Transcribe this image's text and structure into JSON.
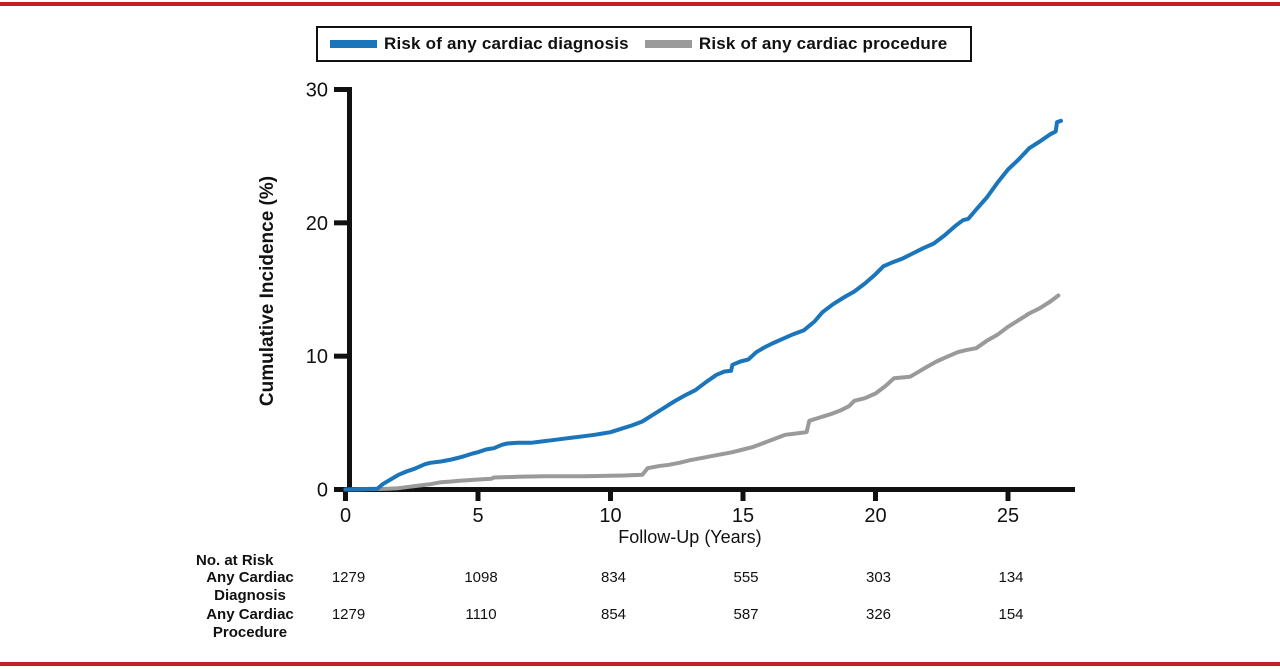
{
  "page": {
    "rule_color": "#C32026",
    "background": "#FFFFFF",
    "axis_color": "#111111"
  },
  "legend": {
    "items": [
      {
        "label": "Risk of any cardiac diagnosis",
        "color": "#1B75BB"
      },
      {
        "label": "Risk of any cardiac procedure",
        "color": "#9A9A9A"
      }
    ]
  },
  "chart_data": {
    "type": "line",
    "subtype": "cumulative-incidence-step-curves",
    "title": "",
    "xlabel": "Follow-Up (Years)",
    "ylabel": "Cumulative Incidence (%)",
    "xlim": [
      0,
      27.5
    ],
    "ylim": [
      0,
      30
    ],
    "x_ticks": [
      0,
      5,
      10,
      15,
      20,
      25
    ],
    "y_ticks": [
      0,
      10,
      20,
      30
    ],
    "grid": false,
    "legend_position": "top",
    "series": [
      {
        "name": "Risk of any cardiac procedure",
        "color": "#9A9A9A",
        "points": [
          [
            0,
            0
          ],
          [
            1.6,
            0.05
          ],
          [
            2,
            0.1
          ],
          [
            2.4,
            0.2
          ],
          [
            2.8,
            0.3
          ],
          [
            3.2,
            0.4
          ],
          [
            3.6,
            0.55
          ],
          [
            4,
            0.6
          ],
          [
            4.3,
            0.65
          ],
          [
            4.6,
            0.7
          ],
          [
            5,
            0.75
          ],
          [
            5.5,
            0.8
          ],
          [
            5.6,
            0.9
          ],
          [
            6.5,
            0.95
          ],
          [
            7.5,
            1.0
          ],
          [
            9,
            1.0
          ],
          [
            10.5,
            1.05
          ],
          [
            11.2,
            1.1
          ],
          [
            11.4,
            1.6
          ],
          [
            11.8,
            1.75
          ],
          [
            12.2,
            1.85
          ],
          [
            12.6,
            2.0
          ],
          [
            13,
            2.2
          ],
          [
            13.4,
            2.35
          ],
          [
            13.8,
            2.5
          ],
          [
            14.2,
            2.65
          ],
          [
            14.6,
            2.8
          ],
          [
            15,
            3.0
          ],
          [
            15.4,
            3.2
          ],
          [
            15.8,
            3.5
          ],
          [
            16.2,
            3.8
          ],
          [
            16.6,
            4.1
          ],
          [
            17,
            4.2
          ],
          [
            17.4,
            4.3
          ],
          [
            17.5,
            5.15
          ],
          [
            17.9,
            5.4
          ],
          [
            18.3,
            5.65
          ],
          [
            18.7,
            5.95
          ],
          [
            19,
            6.25
          ],
          [
            19.2,
            6.65
          ],
          [
            19.6,
            6.85
          ],
          [
            20,
            7.2
          ],
          [
            20.4,
            7.8
          ],
          [
            20.7,
            8.35
          ],
          [
            21.3,
            8.45
          ],
          [
            21.6,
            8.8
          ],
          [
            21.9,
            9.15
          ],
          [
            22.3,
            9.6
          ],
          [
            22.7,
            9.95
          ],
          [
            23.1,
            10.3
          ],
          [
            23.4,
            10.45
          ],
          [
            23.8,
            10.6
          ],
          [
            24.2,
            11.15
          ],
          [
            24.6,
            11.6
          ],
          [
            25,
            12.2
          ],
          [
            25.4,
            12.7
          ],
          [
            25.8,
            13.2
          ],
          [
            26.2,
            13.6
          ],
          [
            26.6,
            14.1
          ],
          [
            26.9,
            14.55
          ]
        ]
      },
      {
        "name": "Risk of any cardiac diagnosis",
        "color": "#1B75BB",
        "points": [
          [
            0,
            0
          ],
          [
            1.2,
            0.05
          ],
          [
            1.4,
            0.4
          ],
          [
            1.7,
            0.75
          ],
          [
            2,
            1.1
          ],
          [
            2.3,
            1.35
          ],
          [
            2.6,
            1.55
          ],
          [
            3,
            1.9
          ],
          [
            3.2,
            2.0
          ],
          [
            3.6,
            2.1
          ],
          [
            4,
            2.25
          ],
          [
            4.4,
            2.45
          ],
          [
            4.8,
            2.7
          ],
          [
            5,
            2.8
          ],
          [
            5.3,
            3.0
          ],
          [
            5.6,
            3.1
          ],
          [
            5.9,
            3.35
          ],
          [
            6.1,
            3.45
          ],
          [
            6.5,
            3.5
          ],
          [
            7,
            3.5
          ],
          [
            7.4,
            3.6
          ],
          [
            7.8,
            3.7
          ],
          [
            8.2,
            3.8
          ],
          [
            8.6,
            3.9
          ],
          [
            9,
            4.0
          ],
          [
            9.4,
            4.1
          ],
          [
            9.7,
            4.2
          ],
          [
            10,
            4.3
          ],
          [
            10.4,
            4.55
          ],
          [
            10.8,
            4.8
          ],
          [
            11.2,
            5.1
          ],
          [
            11.6,
            5.6
          ],
          [
            12,
            6.1
          ],
          [
            12.4,
            6.6
          ],
          [
            12.8,
            7.05
          ],
          [
            13.2,
            7.45
          ],
          [
            13.6,
            8.05
          ],
          [
            14,
            8.6
          ],
          [
            14.3,
            8.85
          ],
          [
            14.55,
            8.9
          ],
          [
            14.6,
            9.35
          ],
          [
            14.9,
            9.6
          ],
          [
            15.2,
            9.75
          ],
          [
            15.5,
            10.3
          ],
          [
            15.8,
            10.65
          ],
          [
            16.1,
            10.95
          ],
          [
            16.5,
            11.3
          ],
          [
            16.9,
            11.65
          ],
          [
            17.3,
            11.95
          ],
          [
            17.7,
            12.6
          ],
          [
            18,
            13.3
          ],
          [
            18.4,
            13.9
          ],
          [
            18.8,
            14.4
          ],
          [
            19.2,
            14.85
          ],
          [
            19.6,
            15.45
          ],
          [
            20,
            16.15
          ],
          [
            20.3,
            16.75
          ],
          [
            20.6,
            17.0
          ],
          [
            21,
            17.3
          ],
          [
            21.4,
            17.7
          ],
          [
            21.8,
            18.1
          ],
          [
            22.2,
            18.45
          ],
          [
            22.6,
            19.05
          ],
          [
            23,
            19.75
          ],
          [
            23.3,
            20.2
          ],
          [
            23.5,
            20.3
          ],
          [
            23.8,
            21.0
          ],
          [
            24.2,
            21.9
          ],
          [
            24.6,
            23.0
          ],
          [
            25,
            24.0
          ],
          [
            25.4,
            24.75
          ],
          [
            25.8,
            25.6
          ],
          [
            26.2,
            26.1
          ],
          [
            26.6,
            26.65
          ],
          [
            26.8,
            26.85
          ],
          [
            26.85,
            27.55
          ],
          [
            27,
            27.65
          ]
        ]
      }
    ]
  },
  "risk_table": {
    "title": "No. at Risk",
    "time_points": [
      0,
      5,
      10,
      15,
      20,
      25
    ],
    "rows": [
      {
        "label_line1": "Any Cardiac",
        "label_line2": "Diagnosis",
        "values": [
          "1279",
          "1098",
          "834",
          "555",
          "303",
          "134"
        ]
      },
      {
        "label_line1": "Any Cardiac",
        "label_line2": "Procedure",
        "values": [
          "1279",
          "1110",
          "854",
          "587",
          "326",
          "154"
        ]
      }
    ]
  }
}
